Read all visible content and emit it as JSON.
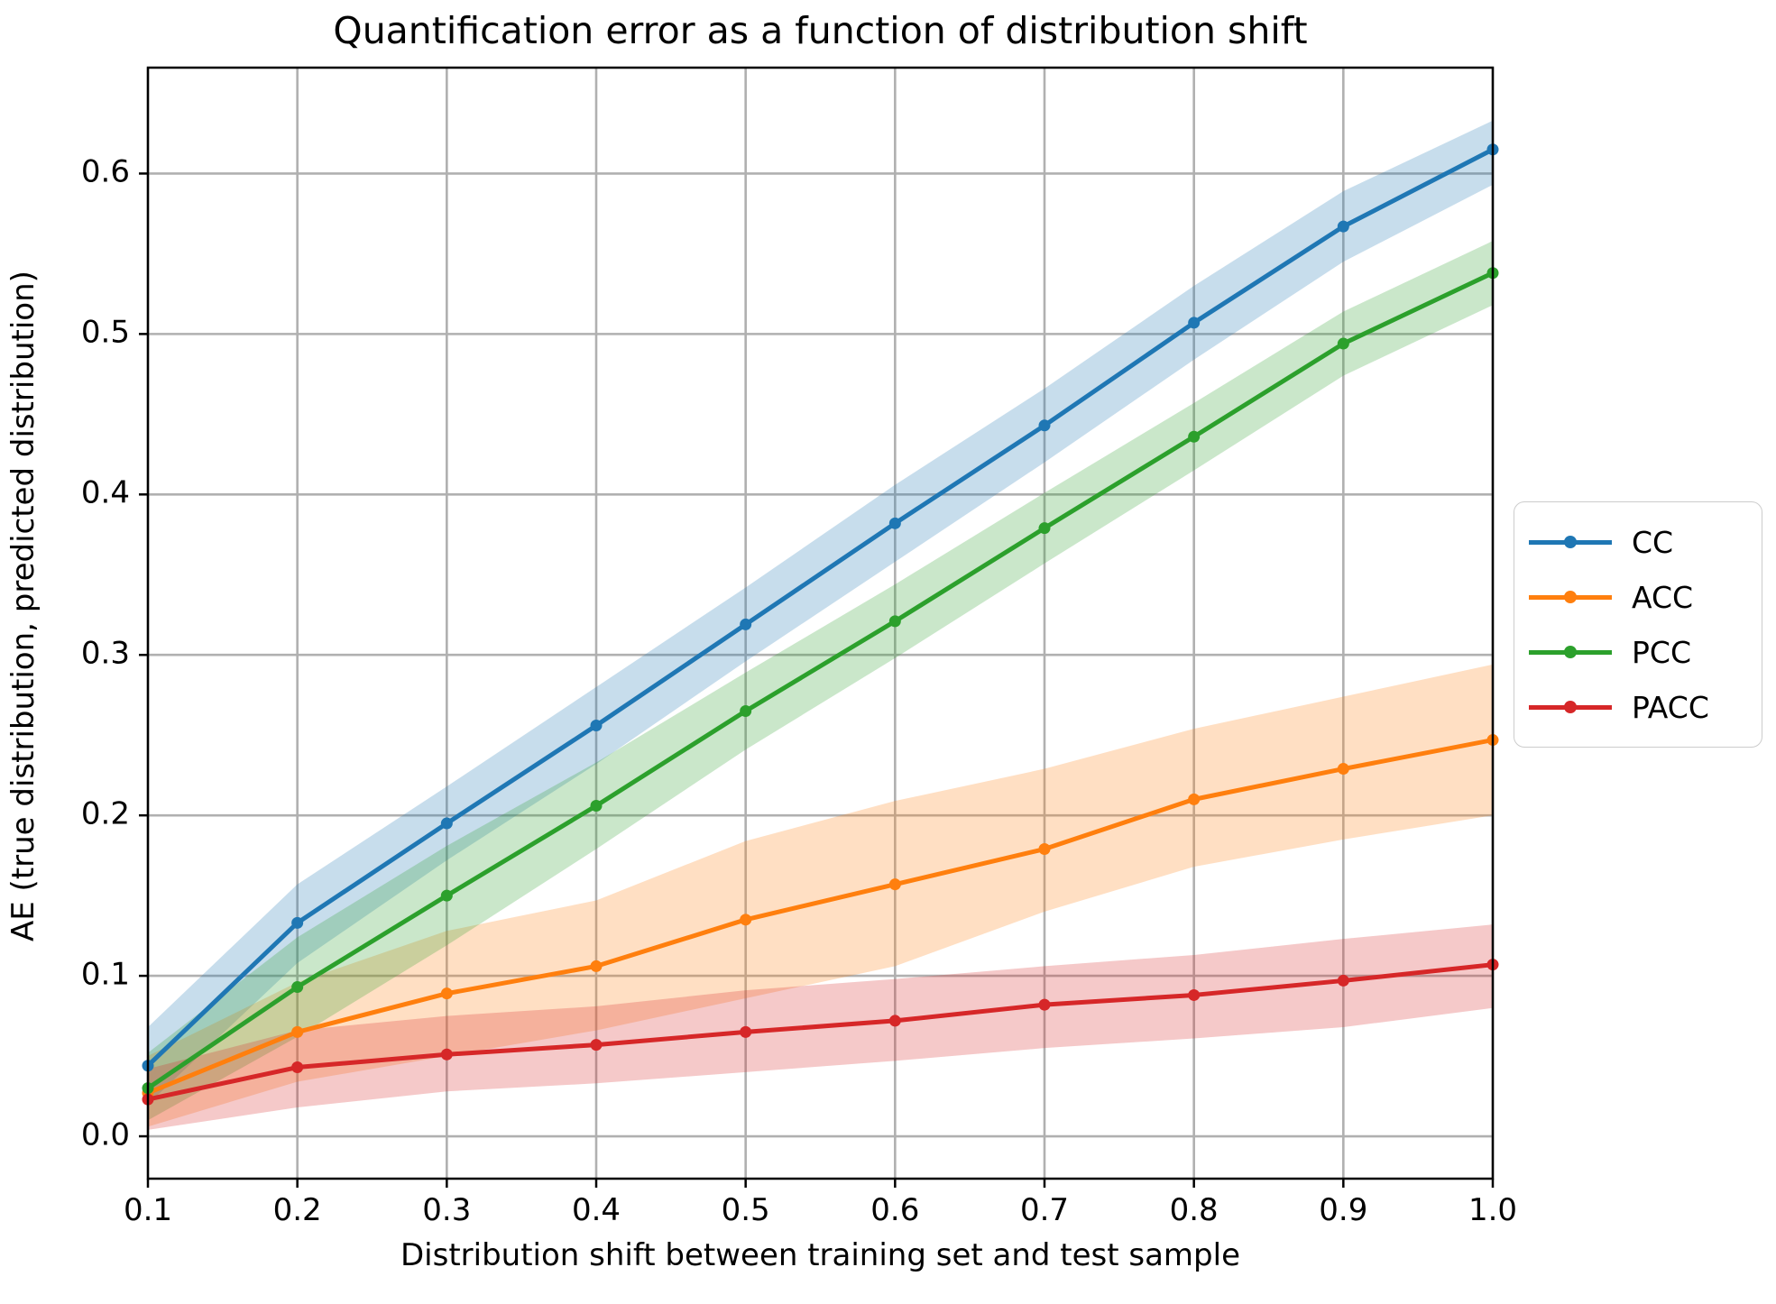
{
  "chart_data": {
    "type": "line",
    "title": "Quantification error as a function of distribution shift",
    "xlabel": "Distribution shift between training set and test sample",
    "ylabel": "AE (true distribution, predicted distribution)",
    "x": [
      0.1,
      0.2,
      0.3,
      0.4,
      0.5,
      0.6,
      0.7,
      0.8,
      0.9,
      1.0
    ],
    "x_tick_labels": [
      "0.1",
      "0.2",
      "0.3",
      "0.4",
      "0.5",
      "0.6",
      "0.7",
      "0.8",
      "0.9",
      "1.0"
    ],
    "y_ticks": [
      0.0,
      0.1,
      0.2,
      0.3,
      0.4,
      0.5,
      0.6
    ],
    "y_tick_labels": [
      "0.0",
      "0.1",
      "0.2",
      "0.3",
      "0.4",
      "0.5",
      "0.6"
    ],
    "xlim": [
      0.1,
      1.0
    ],
    "ylim": [
      -0.0264,
      0.666
    ],
    "grid": true,
    "grid_color": "#b0b0b0",
    "spine_color": "#000000",
    "band_alpha": 0.25,
    "legend_position": "outside-right",
    "series": [
      {
        "name": "CC",
        "color": "#1f77b4",
        "values": [
          0.044,
          0.133,
          0.195,
          0.256,
          0.319,
          0.382,
          0.443,
          0.507,
          0.567,
          0.615
        ],
        "band_lower": [
          0.02,
          0.108,
          0.172,
          0.232,
          0.296,
          0.358,
          0.42,
          0.484,
          0.545,
          0.593
        ],
        "band_upper": [
          0.068,
          0.157,
          0.218,
          0.28,
          0.342,
          0.406,
          0.466,
          0.53,
          0.589,
          0.633
        ]
      },
      {
        "name": "ACC",
        "color": "#ff7f0e",
        "values": [
          0.027,
          0.065,
          0.089,
          0.106,
          0.135,
          0.157,
          0.179,
          0.21,
          0.229,
          0.247
        ],
        "band_lower": [
          0.006,
          0.034,
          0.05,
          0.066,
          0.086,
          0.106,
          0.14,
          0.168,
          0.185,
          0.2
        ],
        "band_upper": [
          0.05,
          0.096,
          0.128,
          0.147,
          0.184,
          0.209,
          0.229,
          0.254,
          0.274,
          0.294
        ]
      },
      {
        "name": "PCC",
        "color": "#2ca02c",
        "values": [
          0.03,
          0.093,
          0.15,
          0.206,
          0.265,
          0.321,
          0.379,
          0.436,
          0.494,
          0.538
        ],
        "band_lower": [
          0.01,
          0.062,
          0.119,
          0.179,
          0.241,
          0.298,
          0.357,
          0.415,
          0.474,
          0.518
        ],
        "band_upper": [
          0.052,
          0.124,
          0.181,
          0.233,
          0.289,
          0.344,
          0.401,
          0.457,
          0.514,
          0.558
        ]
      },
      {
        "name": "PACC",
        "color": "#d62728",
        "values": [
          0.023,
          0.043,
          0.051,
          0.057,
          0.065,
          0.072,
          0.082,
          0.088,
          0.097,
          0.107
        ],
        "band_lower": [
          0.004,
          0.018,
          0.028,
          0.033,
          0.04,
          0.047,
          0.055,
          0.061,
          0.068,
          0.08
        ],
        "band_upper": [
          0.042,
          0.066,
          0.075,
          0.081,
          0.091,
          0.098,
          0.106,
          0.113,
          0.123,
          0.132
        ]
      }
    ]
  }
}
